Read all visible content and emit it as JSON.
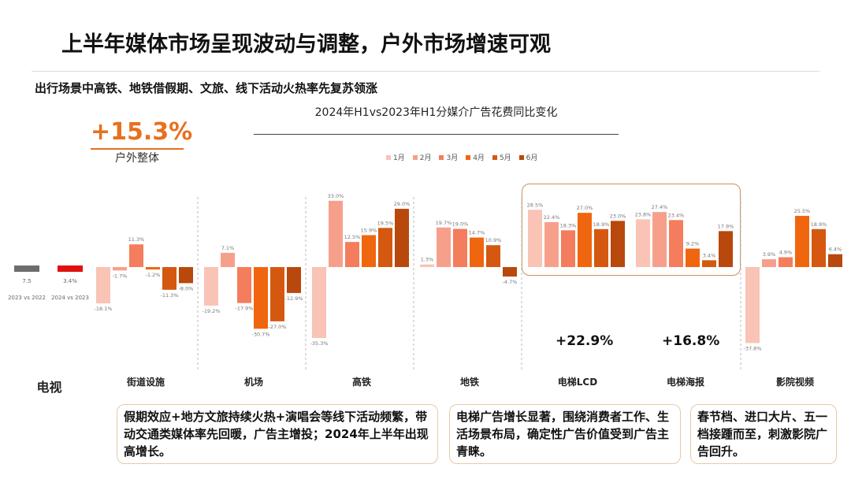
{
  "title": "上半年媒体市场呈现波动与调整，户外市场增速可观",
  "subtitle": "出行场景中高铁、地铁借假期、文旅、线下活动火热率先复苏领涨",
  "badge": {
    "value": "+15.3%",
    "label": "户外整体"
  },
  "tv": {
    "label": "电视",
    "bars": [
      {
        "label": "7.5",
        "sub": "2023 vs 2022",
        "value": -2,
        "color": "#6d6d6d"
      },
      {
        "label": "3.4%",
        "sub": "2024 vs 2023",
        "value": -3,
        "color": "#e01010"
      }
    ]
  },
  "highlights": {
    "lcd": "+22.9%",
    "poster": "+16.8%"
  },
  "notes": [
    "假期效应+地方文旅持续火热+演唱会等线下活动频繁，带动交通类媒体率先回暖，广告主增投；2024年上半年出现高增长。",
    "电梯广告增长显著，围绕消费者工作、生活场景布局，确定性广告价值受到广告主青睐。",
    "春节档、进口大片、五一档接踵而至，刺激影院广告回升。"
  ],
  "chart_data": {
    "type": "bar",
    "title": "2024年H1vs2023年H1分媒介广告花费同比变化",
    "legend": [
      "1月",
      "2月",
      "3月",
      "4月",
      "5月",
      "6月"
    ],
    "colors": [
      "#f9c3b6",
      "#f6a08c",
      "#f37d5c",
      "#f0660f",
      "#d55810",
      "#b8480c"
    ],
    "categories": [
      "街道设施",
      "机场",
      "高铁",
      "地铁",
      "电梯LCD",
      "电梯海报",
      "影院视频"
    ],
    "series": [
      {
        "name": "1月",
        "values": [
          -18.1,
          -19.2,
          -35.3,
          1.3,
          28.5,
          23.8,
          -37.8
        ]
      },
      {
        "name": "2月",
        "values": [
          -1.7,
          7.1,
          33.0,
          19.7,
          22.4,
          27.4,
          3.9
        ]
      },
      {
        "name": "3月",
        "values": [
          11.3,
          -17.9,
          12.5,
          19.0,
          18.3,
          23.4,
          4.9
        ]
      },
      {
        "name": "4月",
        "values": [
          -1.2,
          -30.7,
          15.9,
          14.7,
          27.0,
          9.2,
          25.5
        ]
      },
      {
        "name": "5月",
        "values": [
          -11.3,
          -27.0,
          19.5,
          10.9,
          18.9,
          3.4,
          18.9
        ]
      },
      {
        "name": "6月",
        "values": [
          -8.0,
          -12.9,
          29.0,
          -4.7,
          23.0,
          17.9,
          6.4
        ]
      }
    ],
    "unit": "%"
  }
}
